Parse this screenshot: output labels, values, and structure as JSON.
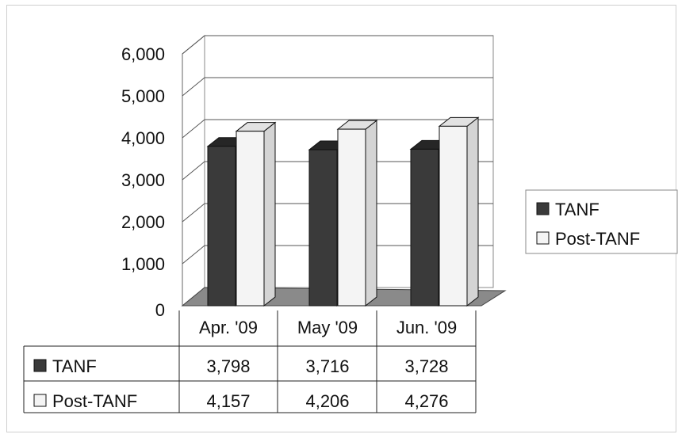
{
  "chart_data": {
    "type": "bar",
    "title": "",
    "xlabel": "",
    "ylabel": "",
    "categories": [
      "Apr. '09",
      "May '09",
      "Jun. '09"
    ],
    "ylim": [
      0,
      6000
    ],
    "yticks": [
      "6,000",
      "5,000",
      "4,000",
      "3,000",
      "2,000",
      "1,000",
      "0"
    ],
    "series": [
      {
        "name": "TANF",
        "values": [
          3798,
          3716,
          3728
        ],
        "display": [
          "3,798",
          "3,716",
          "3,728"
        ],
        "color": "#3a3a3a"
      },
      {
        "name": "Post-TANF",
        "values": [
          4157,
          4206,
          4276
        ],
        "display": [
          "4,157",
          "4,206",
          "4,276"
        ],
        "color": "#f2f2f2"
      }
    ],
    "grid": true,
    "legend_position": "right",
    "data_table": true
  },
  "colors": {
    "tanf_front": "#3a3a3a",
    "tanf_side": "#1c1c1c",
    "tanf_top": "#262626",
    "post_front": "#f4f4f4",
    "post_side": "#d4d4d4",
    "post_top": "#e2e2e2",
    "floor": "#8a8a8a",
    "grid": "#555555"
  }
}
